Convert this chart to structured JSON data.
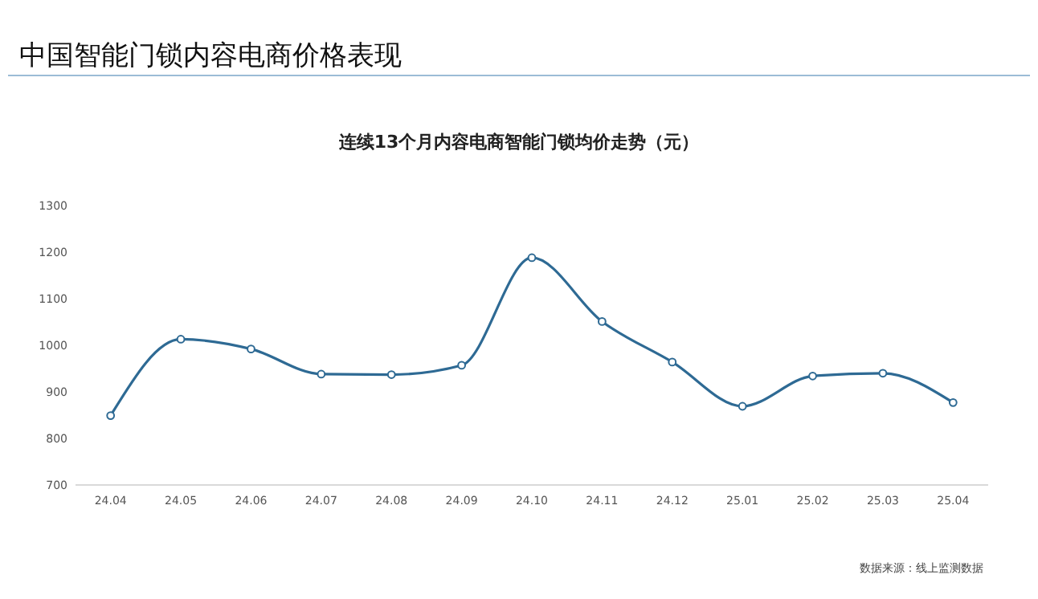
{
  "chart_data": {
    "type": "line",
    "title": "中国智能门锁内容电商价格表现",
    "subtitle": "连续13个月内容电商智能门锁均价走势（元）",
    "categories": [
      "24.04",
      "24.05",
      "24.06",
      "24.07",
      "24.08",
      "24.09",
      "24.10",
      "24.11",
      "24.12",
      "25.01",
      "25.02",
      "25.03",
      "25.04"
    ],
    "series": [
      {
        "color": "#2e6a94",
        "values": [
          849,
          1013,
          992,
          938,
          937,
          957,
          1188,
          1051,
          964,
          869,
          934,
          940,
          877
        ]
      }
    ],
    "ylim": [
      700,
      1300
    ],
    "yticks": [
      700,
      800,
      900,
      1000,
      1100,
      1200,
      1300
    ],
    "grid": false,
    "marker": "circle",
    "line_style": "solid",
    "annotations": [
      "数据来源：线上监测数据"
    ]
  }
}
